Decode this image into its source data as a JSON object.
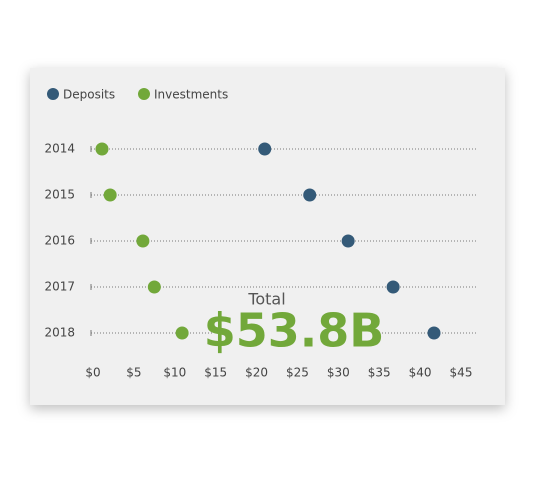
{
  "chart_data": {
    "type": "dot",
    "categories": [
      "2014",
      "2015",
      "2016",
      "2017",
      "2018"
    ],
    "series": [
      {
        "name": "Deposits",
        "color": "#345a78",
        "values": [
          21,
          26.5,
          31.2,
          36.7,
          41.7
        ]
      },
      {
        "name": "Investments",
        "color": "#72a83a",
        "values": [
          1.1,
          2.1,
          6.1,
          7.5,
          10.9
        ]
      }
    ],
    "xlim": [
      0,
      47
    ],
    "xticks": [
      {
        "value": 0,
        "label": "$0"
      },
      {
        "value": 5,
        "label": "$5"
      },
      {
        "value": 10,
        "label": "$10"
      },
      {
        "value": 15,
        "label": "$15"
      },
      {
        "value": 20,
        "label": "$20"
      },
      {
        "value": 25,
        "label": "$25"
      },
      {
        "value": 30,
        "label": "$30"
      },
      {
        "value": 35,
        "label": "$35"
      },
      {
        "value": 40,
        "label": "$40"
      },
      {
        "value": 45,
        "label": "$45"
      }
    ],
    "annotation": {
      "label": "Total",
      "value": "$53.8B"
    }
  }
}
